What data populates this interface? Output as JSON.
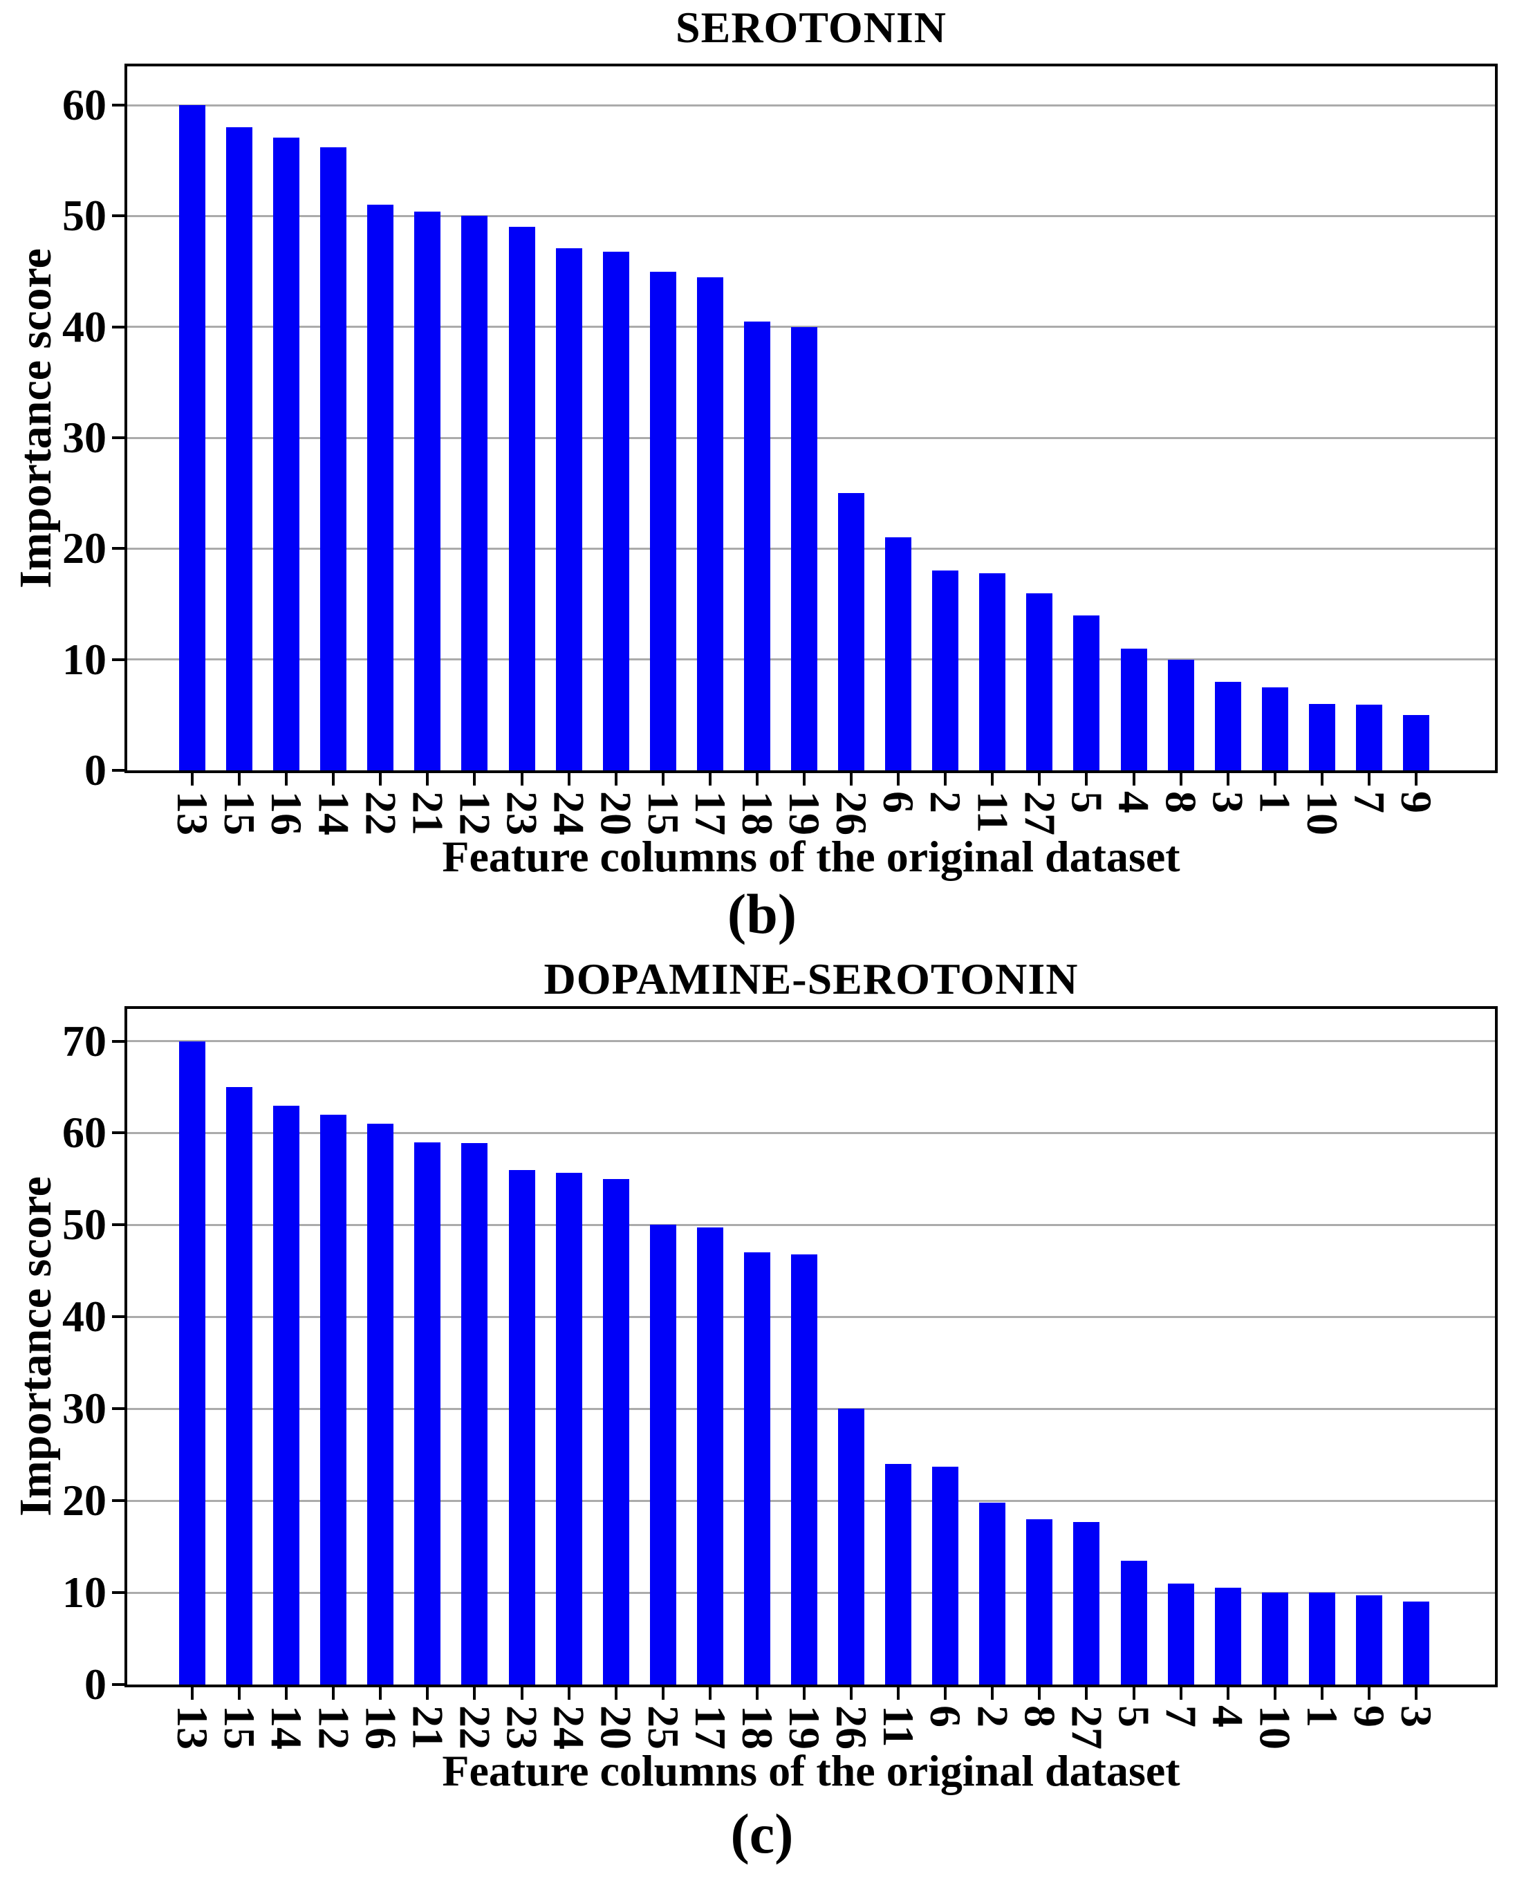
{
  "figure": {
    "background": "#ffffff",
    "bar_color": "#0000f8",
    "grid_color": "#ababab",
    "axis_color": "#000000"
  },
  "chart_data": [
    {
      "type": "bar",
      "title": "SEROTONIN",
      "ylabel": "Importance score",
      "xlabel": "Feature columns of the original dataset",
      "caption": "(b)",
      "legend": "none",
      "grid": "horizontal",
      "ylim": [
        0,
        63.5
      ],
      "yticks": [
        0,
        10,
        20,
        30,
        40,
        50,
        60
      ],
      "categories": [
        "13",
        "15",
        "16",
        "14",
        "22",
        "21",
        "12",
        "23",
        "24",
        "20",
        "15",
        "17",
        "18",
        "19",
        "26",
        "6",
        "2",
        "11",
        "27",
        "5",
        "4",
        "8",
        "3",
        "1",
        "10",
        "7",
        "9"
      ],
      "values": [
        60,
        58,
        57.1,
        56.2,
        51,
        50.4,
        50,
        49,
        47.1,
        46.8,
        45,
        44.5,
        40.5,
        40,
        25,
        21,
        18,
        17.8,
        16,
        14,
        11,
        10,
        8,
        7.5,
        6,
        5.9,
        5
      ]
    },
    {
      "type": "bar",
      "title": "DOPAMINE-SEROTONIN",
      "ylabel": "Importance score",
      "xlabel": "Feature columns of the original dataset",
      "caption": "(c)",
      "legend": "none",
      "grid": "horizontal",
      "ylim": [
        0,
        73.5
      ],
      "yticks": [
        0,
        10,
        20,
        30,
        40,
        50,
        60,
        70
      ],
      "categories": [
        "13",
        "15",
        "14",
        "12",
        "16",
        "21",
        "22",
        "23",
        "24",
        "20",
        "25",
        "17",
        "18",
        "19",
        "26",
        "11",
        "6",
        "2",
        "8",
        "27",
        "5",
        "7",
        "4",
        "10",
        "1",
        "9",
        "3"
      ],
      "values": [
        70,
        65,
        63,
        62,
        61,
        59,
        58.9,
        56,
        55.7,
        55,
        50,
        49.7,
        47,
        46.8,
        30,
        24,
        23.7,
        19.8,
        18,
        17.7,
        13.5,
        11,
        10.5,
        10,
        10,
        9.7,
        9
      ]
    }
  ]
}
